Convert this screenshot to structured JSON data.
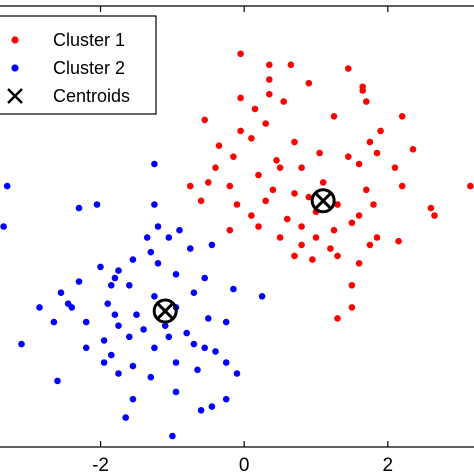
{
  "chart_data": {
    "type": "scatter",
    "xlim": [
      -3.4,
      3.2
    ],
    "ylim": [
      -2.9,
      3.1
    ],
    "x_ticks": [
      -2,
      0,
      2
    ],
    "x_tick_labels": [
      "-2",
      "0",
      "2"
    ],
    "grid": false,
    "legend": {
      "placement": "top-left",
      "entries": [
        "Cluster 1",
        "Cluster 2",
        "Centroids"
      ]
    },
    "series": [
      {
        "name": "Cluster 1",
        "color": "#ff0000",
        "marker": "dot",
        "points": [
          [
            -0.05,
            2.45
          ],
          [
            0.35,
            2.3
          ],
          [
            0.65,
            2.3
          ],
          [
            0.35,
            2.1
          ],
          [
            1.45,
            2.25
          ],
          [
            0.9,
            2.05
          ],
          [
            1.65,
            2.0
          ],
          [
            -0.05,
            1.85
          ],
          [
            0.35,
            1.9
          ],
          [
            0.15,
            1.7
          ],
          [
            0.55,
            1.8
          ],
          [
            1.65,
            1.95
          ],
          [
            1.7,
            1.8
          ],
          [
            1.25,
            1.6
          ],
          [
            2.2,
            1.6
          ],
          [
            -0.55,
            1.55
          ],
          [
            0.3,
            1.5
          ],
          [
            -0.05,
            1.4
          ],
          [
            0.1,
            1.3
          ],
          [
            0.7,
            1.25
          ],
          [
            1.9,
            1.4
          ],
          [
            1.75,
            1.25
          ],
          [
            -0.35,
            1.2
          ],
          [
            -0.15,
            1.05
          ],
          [
            0.45,
            1.0
          ],
          [
            1.05,
            1.1
          ],
          [
            1.45,
            1.05
          ],
          [
            1.85,
            1.1
          ],
          [
            2.35,
            1.15
          ],
          [
            -0.4,
            0.9
          ],
          [
            0.2,
            0.8
          ],
          [
            0.5,
            0.9
          ],
          [
            0.8,
            0.9
          ],
          [
            1.6,
            0.95
          ],
          [
            2.1,
            0.9
          ],
          [
            -0.75,
            0.65
          ],
          [
            -0.5,
            0.7
          ],
          [
            -0.2,
            0.65
          ],
          [
            0.4,
            0.6
          ],
          [
            0.7,
            0.55
          ],
          [
            1.1,
            0.7
          ],
          [
            1.7,
            0.6
          ],
          [
            2.2,
            0.65
          ],
          [
            -0.6,
            0.45
          ],
          [
            -0.1,
            0.4
          ],
          [
            0.3,
            0.45
          ],
          [
            0.9,
            0.5
          ],
          [
            1.3,
            0.4
          ],
          [
            1.8,
            0.4
          ],
          [
            3.15,
            0.65
          ],
          [
            0.1,
            0.25
          ],
          [
            0.6,
            0.2
          ],
          [
            1.0,
            0.3
          ],
          [
            1.6,
            0.25
          ],
          [
            2.6,
            0.35
          ],
          [
            2.65,
            0.25
          ],
          [
            -0.2,
            0.05
          ],
          [
            0.2,
            0.1
          ],
          [
            0.8,
            0.1
          ],
          [
            1.25,
            0.05
          ],
          [
            1.5,
            0.15
          ],
          [
            0.5,
            -0.05
          ],
          [
            1.0,
            -0.05
          ],
          [
            1.85,
            -0.05
          ],
          [
            0.8,
            -0.15
          ],
          [
            1.2,
            -0.2
          ],
          [
            1.75,
            -0.15
          ],
          [
            2.15,
            -0.1
          ],
          [
            1.3,
            -0.3
          ],
          [
            0.7,
            -0.3
          ],
          [
            0.95,
            -0.35
          ],
          [
            1.6,
            -0.4
          ],
          [
            1.5,
            -1.0
          ],
          [
            1.3,
            -1.15
          ],
          [
            1.5,
            -0.7
          ]
        ]
      },
      {
        "name": "Cluster 2",
        "color": "#0000ff",
        "marker": "dot",
        "points": [
          [
            -1.25,
            0.95
          ],
          [
            -1.25,
            0.4
          ],
          [
            -2.05,
            0.4
          ],
          [
            -2.3,
            0.35
          ],
          [
            -3.3,
            0.65
          ],
          [
            -3.35,
            0.1
          ],
          [
            -1.2,
            0.1
          ],
          [
            -0.9,
            0.05
          ],
          [
            -1.05,
            -0.05
          ],
          [
            -1.35,
            -0.05
          ],
          [
            -0.45,
            -0.15
          ],
          [
            -0.75,
            -0.2
          ],
          [
            -1.3,
            -0.25
          ],
          [
            -1.2,
            -0.4
          ],
          [
            -1.55,
            -0.35
          ],
          [
            -2.0,
            -0.45
          ],
          [
            -1.75,
            -0.5
          ],
          [
            -1.8,
            -0.6
          ],
          [
            -0.55,
            -0.6
          ],
          [
            -0.95,
            -0.55
          ],
          [
            -2.3,
            -0.65
          ],
          [
            -2.55,
            -0.8
          ],
          [
            -2.45,
            -0.95
          ],
          [
            -1.85,
            -0.7
          ],
          [
            -1.6,
            -0.7
          ],
          [
            -0.7,
            -0.8
          ],
          [
            -0.15,
            -0.75
          ],
          [
            0.25,
            -0.85
          ],
          [
            -1.25,
            -0.85
          ],
          [
            -1.9,
            -0.95
          ],
          [
            -0.95,
            -1.0
          ],
          [
            -2.4,
            -1.0
          ],
          [
            -2.85,
            -1.0
          ],
          [
            -1.8,
            -1.1
          ],
          [
            -1.5,
            -1.1
          ],
          [
            -0.5,
            -1.15
          ],
          [
            -0.25,
            -1.2
          ],
          [
            -2.2,
            -1.2
          ],
          [
            -1.75,
            -1.25
          ],
          [
            -2.65,
            -1.2
          ],
          [
            -1.1,
            -1.25
          ],
          [
            -1.4,
            -1.3
          ],
          [
            -0.8,
            -1.35
          ],
          [
            -1.95,
            -1.45
          ],
          [
            -1.6,
            -1.4
          ],
          [
            -1.05,
            -1.4
          ],
          [
            -0.7,
            -1.5
          ],
          [
            -2.2,
            -1.55
          ],
          [
            -1.25,
            -1.55
          ],
          [
            -0.55,
            -1.55
          ],
          [
            -1.85,
            -1.65
          ],
          [
            -0.4,
            -1.6
          ],
          [
            -3.1,
            -1.5
          ],
          [
            -1.95,
            -1.75
          ],
          [
            -1.55,
            -1.8
          ],
          [
            -0.95,
            -1.75
          ],
          [
            -0.25,
            -1.75
          ],
          [
            -0.65,
            -1.85
          ],
          [
            -1.75,
            -1.9
          ],
          [
            -1.3,
            -1.95
          ],
          [
            -0.1,
            -1.9
          ],
          [
            -2.6,
            -2.0
          ],
          [
            -0.95,
            -2.15
          ],
          [
            -0.25,
            -2.25
          ],
          [
            -1.55,
            -2.25
          ],
          [
            -0.45,
            -2.35
          ],
          [
            -0.6,
            -2.4
          ],
          [
            -1.65,
            -2.5
          ],
          [
            -1.0,
            -2.75
          ]
        ]
      },
      {
        "name": "Centroids",
        "color": "#000000",
        "marker": "x-circle",
        "points": [
          [
            1.1,
            0.45
          ],
          [
            -1.1,
            -1.05
          ]
        ]
      }
    ]
  }
}
